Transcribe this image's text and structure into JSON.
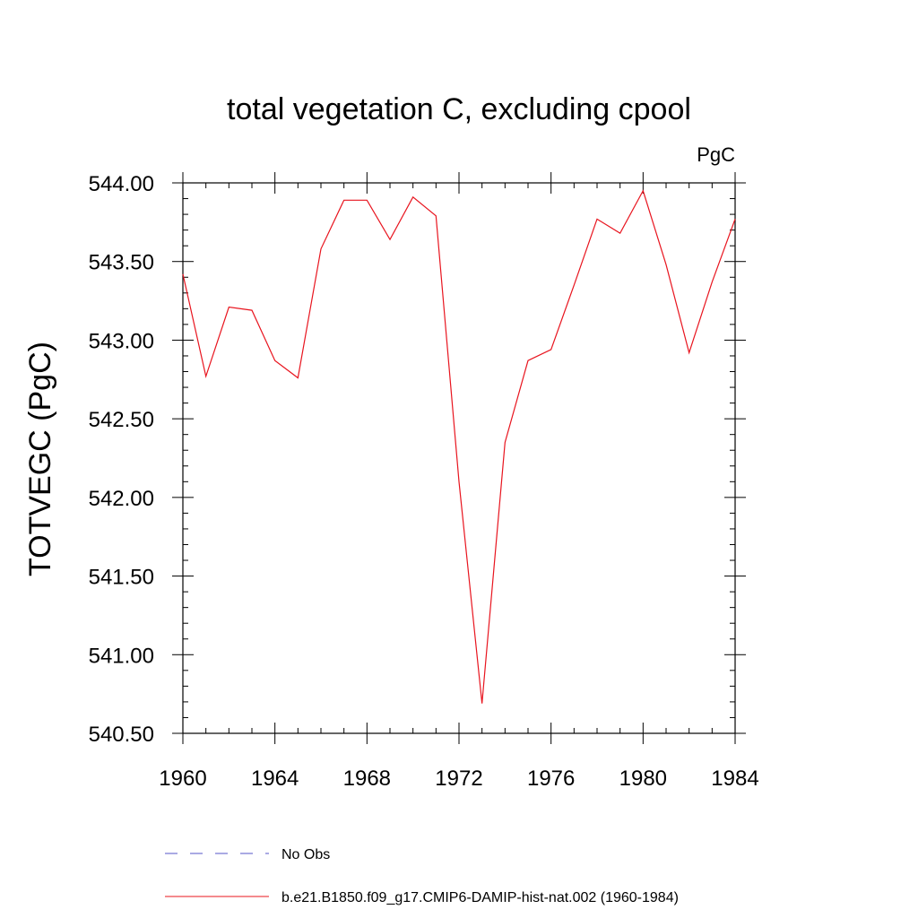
{
  "chart_data": {
    "type": "line",
    "title": "total vegetation C, excluding cpool",
    "units": "PgC",
    "ylabel": "TOTVEGC  (PgC)",
    "xlabel": "",
    "xlim": [
      1960,
      1984
    ],
    "ylim": [
      540.5,
      544.0
    ],
    "x_ticks": [
      "1960",
      "1964",
      "1968",
      "1972",
      "1976",
      "1980",
      "1984"
    ],
    "y_ticks": [
      "540.50",
      "541.00",
      "541.50",
      "542.00",
      "542.50",
      "543.00",
      "543.50",
      "544.00"
    ],
    "x": [
      1960,
      1961,
      1962,
      1963,
      1964,
      1965,
      1966,
      1967,
      1968,
      1969,
      1970,
      1971,
      1972,
      1973,
      1974,
      1975,
      1976,
      1977,
      1978,
      1979,
      1980,
      1981,
      1982,
      1983,
      1984
    ],
    "series": [
      {
        "name": "b.e21.B1850.f09_g17.CMIP6-DAMIP-hist-nat.002 (1960-1984)",
        "color": "#e8141e",
        "values": [
          543.42,
          542.77,
          543.21,
          543.19,
          542.87,
          542.76,
          543.58,
          543.89,
          543.89,
          543.64,
          543.91,
          543.79,
          542.1,
          540.69,
          542.35,
          542.87,
          542.94,
          543.35,
          543.77,
          543.68,
          543.95,
          543.48,
          542.92,
          543.37,
          543.77
        ]
      }
    ],
    "legend": {
      "position": "bottom",
      "entries": [
        {
          "label": "No Obs",
          "color": "#5555c8",
          "style": "dashed"
        },
        {
          "label": "b.e21.B1850.f09_g17.CMIP6-DAMIP-hist-nat.002 (1960-1984)",
          "color": "#e8141e",
          "style": "solid"
        }
      ]
    }
  }
}
